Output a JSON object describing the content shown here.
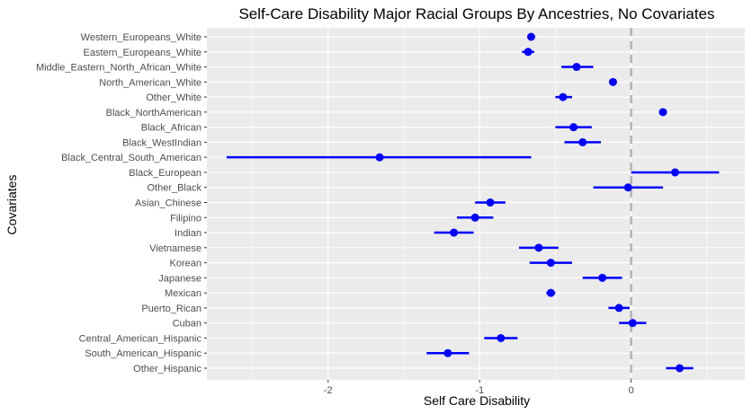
{
  "chart_data": {
    "type": "scatter",
    "title": "Self-Care Disability Major Racial Groups By Ancestries, No Covariates",
    "xlabel": "Self Care Disability",
    "ylabel": "Covariates",
    "xlim": [
      -2.8,
      0.75
    ],
    "x_ticks": [
      -2,
      -1,
      0
    ],
    "x_tick_labels": [
      "-2",
      "-1",
      "0"
    ],
    "reference_line": 0,
    "grid": true,
    "legend": "none",
    "colors": {
      "point": "#0000ff",
      "reference": "#b3b3b3",
      "panel": "#ebebeb",
      "grid": "#ffffff"
    },
    "points": [
      {
        "label": "Western_Europeans_White",
        "x": -0.66,
        "lo": -0.66,
        "hi": -0.66
      },
      {
        "label": "Eastern_Europeans_White",
        "x": -0.68,
        "lo": -0.72,
        "hi": -0.64
      },
      {
        "label": "Middle_Eastern_North_African_White",
        "x": -0.36,
        "lo": -0.46,
        "hi": -0.25
      },
      {
        "label": "North_American_White",
        "x": -0.12,
        "lo": -0.12,
        "hi": -0.12
      },
      {
        "label": "Other_White",
        "x": -0.45,
        "lo": -0.5,
        "hi": -0.39
      },
      {
        "label": "Black_NorthAmerican",
        "x": 0.21,
        "lo": 0.19,
        "hi": 0.23
      },
      {
        "label": "Black_African",
        "x": -0.38,
        "lo": -0.5,
        "hi": -0.26
      },
      {
        "label": "Black_WestIndian",
        "x": -0.32,
        "lo": -0.44,
        "hi": -0.2
      },
      {
        "label": "Black_Central_South_American",
        "x": -1.66,
        "lo": -2.67,
        "hi": -0.66
      },
      {
        "label": "Black_European",
        "x": 0.29,
        "lo": 0.0,
        "hi": 0.58
      },
      {
        "label": "Other_Black",
        "x": -0.02,
        "lo": -0.25,
        "hi": 0.21
      },
      {
        "label": "Asian_Chinese",
        "x": -0.93,
        "lo": -1.03,
        "hi": -0.83
      },
      {
        "label": "Filipino",
        "x": -1.03,
        "lo": -1.15,
        "hi": -0.91
      },
      {
        "label": "Indian",
        "x": -1.17,
        "lo": -1.3,
        "hi": -1.04
      },
      {
        "label": "Vietnamese",
        "x": -0.61,
        "lo": -0.74,
        "hi": -0.48
      },
      {
        "label": "Korean",
        "x": -0.53,
        "lo": -0.67,
        "hi": -0.39
      },
      {
        "label": "Japanese",
        "x": -0.19,
        "lo": -0.32,
        "hi": -0.06
      },
      {
        "label": "Mexican",
        "x": -0.53,
        "lo": -0.56,
        "hi": -0.5
      },
      {
        "label": "Puerto_Rican",
        "x": -0.08,
        "lo": -0.15,
        "hi": -0.01
      },
      {
        "label": "Cuban",
        "x": 0.01,
        "lo": -0.08,
        "hi": 0.1
      },
      {
        "label": "Central_American_Hispanic",
        "x": -0.86,
        "lo": -0.97,
        "hi": -0.75
      },
      {
        "label": "South_American_Hispanic",
        "x": -1.21,
        "lo": -1.35,
        "hi": -1.07
      },
      {
        "label": "Other_Hispanic",
        "x": 0.32,
        "lo": 0.23,
        "hi": 0.41
      }
    ]
  }
}
